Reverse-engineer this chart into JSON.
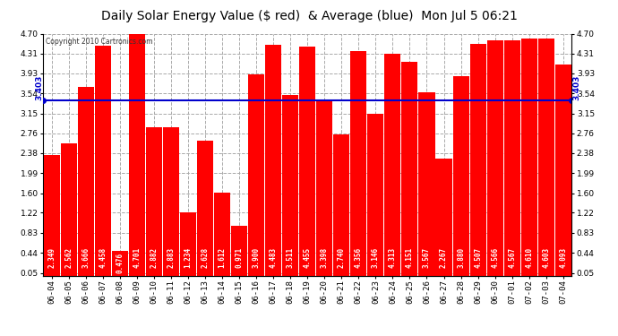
{
  "title": "Daily Solar Energy Value ($ red)  & Average (blue)  Mon Jul 5 06:21",
  "copyright": "Copyright 2010 Cartronics.com",
  "average": 3.403,
  "categories": [
    "06-04",
    "06-05",
    "06-06",
    "06-07",
    "06-08",
    "06-09",
    "06-10",
    "06-11",
    "06-12",
    "06-13",
    "06-14",
    "06-15",
    "06-16",
    "06-17",
    "06-18",
    "06-19",
    "06-20",
    "06-21",
    "06-22",
    "06-23",
    "06-24",
    "06-25",
    "06-26",
    "06-27",
    "06-28",
    "06-29",
    "06-30",
    "07-01",
    "07-02",
    "07-03",
    "07-04"
  ],
  "values": [
    2.349,
    2.562,
    3.666,
    4.458,
    0.476,
    4.701,
    2.882,
    2.883,
    1.234,
    2.628,
    1.612,
    0.971,
    3.9,
    4.483,
    3.511,
    4.455,
    3.398,
    2.74,
    4.356,
    3.146,
    4.313,
    4.151,
    3.567,
    2.267,
    3.88,
    4.507,
    4.566,
    4.567,
    4.61,
    4.603,
    4.093
  ],
  "bar_color": "#ff0000",
  "avg_line_color": "#0000cc",
  "background_color": "#ffffff",
  "plot_bg_color": "#ffffff",
  "grid_color": "#aaaaaa",
  "text_color": "#000000",
  "bar_text_color": "#ffffff",
  "ylim": [
    0.0,
    4.7
  ],
  "yticks": [
    0.05,
    0.44,
    0.83,
    1.22,
    1.6,
    1.99,
    2.38,
    2.76,
    3.15,
    3.54,
    3.93,
    4.31,
    4.7
  ],
  "avg_label": "3.403",
  "title_fontsize": 10,
  "tick_fontsize": 6.5,
  "value_fontsize": 5.5,
  "copy_fontsize": 5.5
}
